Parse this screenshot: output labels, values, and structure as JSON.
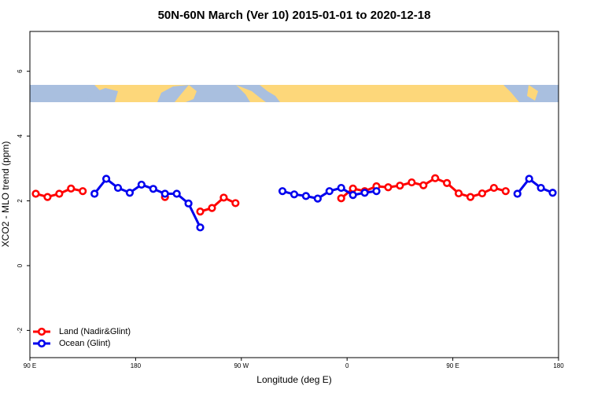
{
  "chart_data": {
    "type": "line",
    "title": "50N-60N March (Ver 10)   2015-01-01 to 2020-12-18",
    "x_label": "Longitude (deg E)",
    "y_label": "XCO2 - MLO trend (ppm)",
    "xlim": [
      90,
      540
    ],
    "xticks": [
      {
        "value": 90,
        "label": "90 E"
      },
      180,
      {
        "value": 270,
        "label": "90 W"
      },
      {
        "value": 360,
        "label": "0"
      },
      {
        "value": 450,
        "label": "90 E"
      },
      {
        "value": 540,
        "label": "180"
      }
    ],
    "ylim": [
      -2.84,
      7.23
    ],
    "yticks": [
      -2,
      0,
      2,
      4,
      6
    ],
    "legend": "bottom-left",
    "series": [
      {
        "name": "Land (Nadir&Glint)",
        "color": "#ff0000",
        "x": [
          95,
          105,
          115,
          125,
          135,
          null,
          205,
          null,
          235,
          245,
          255,
          265,
          null,
          355,
          365,
          375,
          385,
          395,
          405,
          415,
          425,
          435,
          445,
          455,
          465,
          475,
          485,
          495
        ],
        "values": [
          2.22,
          2.12,
          2.22,
          2.38,
          2.3,
          null,
          2.12,
          null,
          1.67,
          1.78,
          2.1,
          1.93,
          null,
          2.08,
          2.38,
          2.3,
          2.45,
          2.42,
          2.47,
          2.57,
          2.48,
          2.7,
          2.55,
          2.23,
          2.12,
          2.23,
          2.4,
          2.3
        ]
      },
      {
        "name": "Ocean (Glint)",
        "color": "#0000ee",
        "x": [
          145,
          155,
          165,
          175,
          185,
          195,
          205,
          215,
          225,
          235,
          null,
          305,
          315,
          325,
          335,
          345,
          355,
          365,
          375,
          385,
          null,
          505,
          515,
          525,
          535
        ],
        "values": [
          2.22,
          2.68,
          2.4,
          2.25,
          2.5,
          2.37,
          2.22,
          2.22,
          1.92,
          1.18,
          null,
          2.3,
          2.2,
          2.15,
          2.07,
          2.3,
          2.4,
          2.18,
          2.25,
          2.3,
          null,
          2.22,
          2.68,
          2.4,
          2.25
        ]
      }
    ]
  }
}
